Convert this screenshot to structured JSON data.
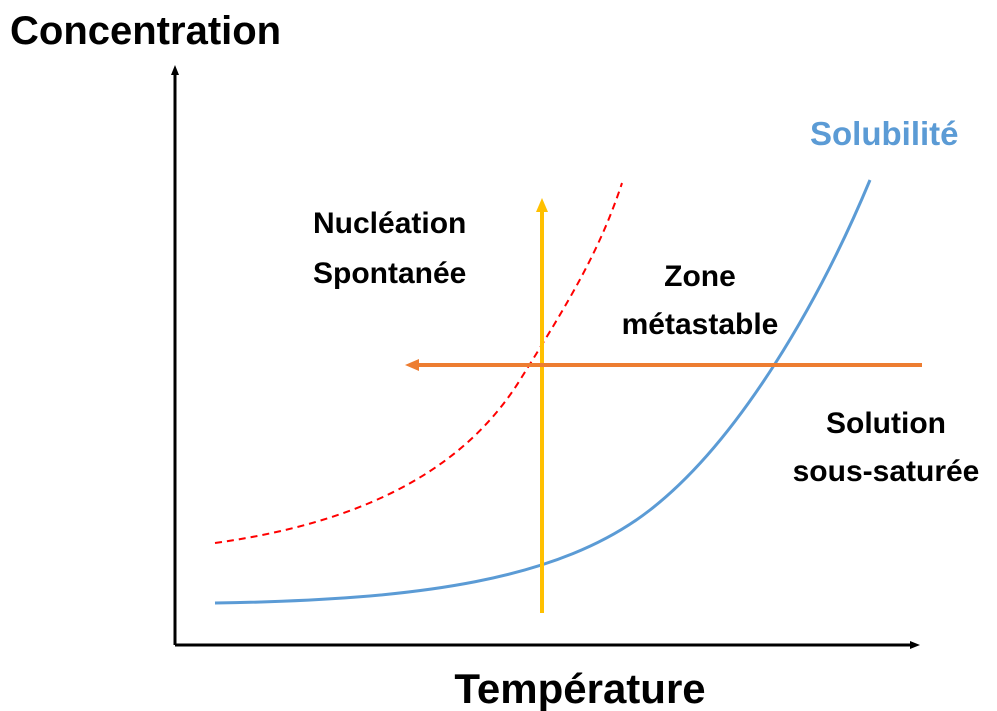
{
  "axes": {
    "y_label": "Concentration",
    "x_label": "Température"
  },
  "curves": {
    "solubility": "Solubilité"
  },
  "regions": [
    {
      "lines": [
        "Nucléation",
        "Spontanée"
      ]
    },
    {
      "lines": [
        "Zone",
        "métastable"
      ]
    },
    {
      "lines": [
        "Solution",
        "sous-saturée"
      ]
    }
  ]
}
